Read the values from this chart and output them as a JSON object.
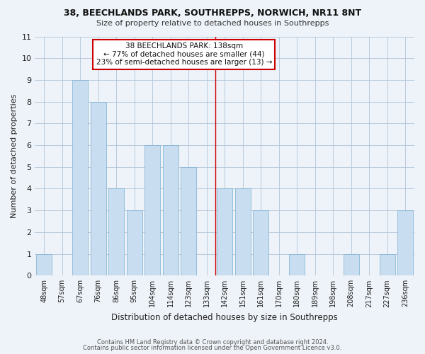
{
  "title1": "38, BEECHLANDS PARK, SOUTHREPPS, NORWICH, NR11 8NT",
  "title2": "Size of property relative to detached houses in Southrepps",
  "xlabel": "Distribution of detached houses by size in Southrepps",
  "ylabel": "Number of detached properties",
  "bin_labels": [
    "48sqm",
    "57sqm",
    "67sqm",
    "76sqm",
    "86sqm",
    "95sqm",
    "104sqm",
    "114sqm",
    "123sqm",
    "133sqm",
    "142sqm",
    "151sqm",
    "161sqm",
    "170sqm",
    "180sqm",
    "189sqm",
    "198sqm",
    "208sqm",
    "217sqm",
    "227sqm",
    "236sqm"
  ],
  "bar_heights": [
    1,
    0,
    9,
    8,
    4,
    3,
    6,
    6,
    5,
    0,
    4,
    4,
    3,
    0,
    1,
    0,
    0,
    1,
    0,
    1,
    3
  ],
  "bar_color_normal": "#c8ddf0",
  "ylim": [
    0,
    11
  ],
  "yticks": [
    0,
    1,
    2,
    3,
    4,
    5,
    6,
    7,
    8,
    9,
    10,
    11
  ],
  "annotation_title": "38 BEECHLANDS PARK: 138sqm",
  "annotation_line1": "← 77% of detached houses are smaller (44)",
  "annotation_line2": "23% of semi-detached houses are larger (13) →",
  "footer1": "Contains HM Land Registry data © Crown copyright and database right 2024.",
  "footer2": "Contains public sector information licensed under the Open Government Licence v3.0.",
  "annotation_border_color": "#cc0000",
  "vertical_line_bar_index": 9,
  "bg_color": "#eef3f9",
  "plot_bg_color": "#eef3f9"
}
